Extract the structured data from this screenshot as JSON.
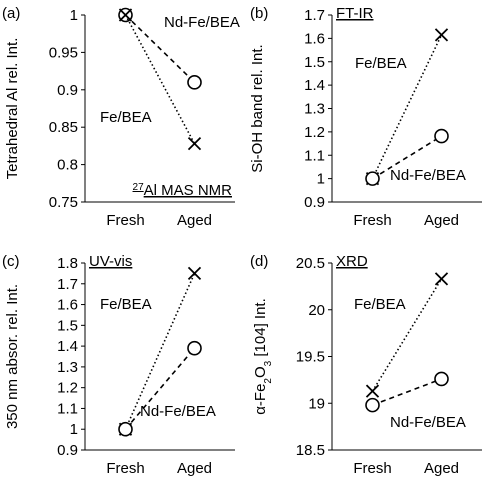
{
  "chart_data": [
    {
      "type": "line",
      "panel": "(a)",
      "technique_label_parts": [
        "27",
        "Al MAS NMR"
      ],
      "ylabel": "Tetrahedral Al rel. Int.",
      "categories": [
        "Fresh",
        "Aged"
      ],
      "ylim": [
        0.75,
        1.0
      ],
      "yticks": [
        "0.75",
        "0.8",
        "0.85",
        "0.9",
        "0.95",
        "1"
      ],
      "series": [
        {
          "name": "Nd-Fe/BEA",
          "marker": "circle",
          "line": "dashed",
          "values": [
            1.0,
            0.91
          ]
        },
        {
          "name": "Fe/BEA",
          "marker": "x",
          "line": "dotted",
          "values": [
            1.0,
            0.828
          ]
        }
      ]
    },
    {
      "type": "line",
      "panel": "(b)",
      "technique_label_parts": [
        "FT-IR"
      ],
      "ylabel": "Si-OH band rel. Int.",
      "categories": [
        "Fresh",
        "Aged"
      ],
      "ylim": [
        0.9,
        1.7
      ],
      "yticks": [
        "0.9",
        "1",
        "1.1",
        "1.2",
        "1.3",
        "1.4",
        "1.5",
        "1.6",
        "1.7"
      ],
      "series": [
        {
          "name": "Fe/BEA",
          "marker": "x",
          "line": "dotted",
          "values": [
            1.0,
            1.615
          ]
        },
        {
          "name": "Nd-Fe/BEA",
          "marker": "circle",
          "line": "dashed",
          "values": [
            1.0,
            1.182
          ]
        }
      ]
    },
    {
      "type": "line",
      "panel": "(c)",
      "technique_label_parts": [
        "UV-vis"
      ],
      "ylabel": "350 nm absor. rel. Int.",
      "categories": [
        "Fresh",
        "Aged"
      ],
      "ylim": [
        0.9,
        1.8
      ],
      "yticks": [
        "0.9",
        "1",
        "1.1",
        "1.2",
        "1.3",
        "1.4",
        "1.5",
        "1.6",
        "1.7",
        "1.8"
      ],
      "series": [
        {
          "name": "Fe/BEA",
          "marker": "x",
          "line": "dotted",
          "values": [
            1.0,
            1.75
          ]
        },
        {
          "name": "Nd-Fe/BEA",
          "marker": "circle",
          "line": "dashed",
          "values": [
            1.0,
            1.39
          ]
        }
      ]
    },
    {
      "type": "line",
      "panel": "(d)",
      "technique_label_parts": [
        "XRD"
      ],
      "ylabel_parts": [
        "α-Fe",
        "2",
        "O",
        "3",
        " [104] Int."
      ],
      "categories": [
        "Fresh",
        "Aged"
      ],
      "ylim": [
        18.5,
        20.5
      ],
      "yticks": [
        "18.5",
        "19",
        "19.5",
        "20",
        "20.5"
      ],
      "series": [
        {
          "name": "Fe/BEA",
          "marker": "x",
          "line": "dotted",
          "values": [
            19.13,
            20.33
          ]
        },
        {
          "name": "Nd-Fe/BEA",
          "marker": "circle",
          "line": "dashed",
          "values": [
            18.98,
            19.26
          ]
        }
      ]
    }
  ]
}
